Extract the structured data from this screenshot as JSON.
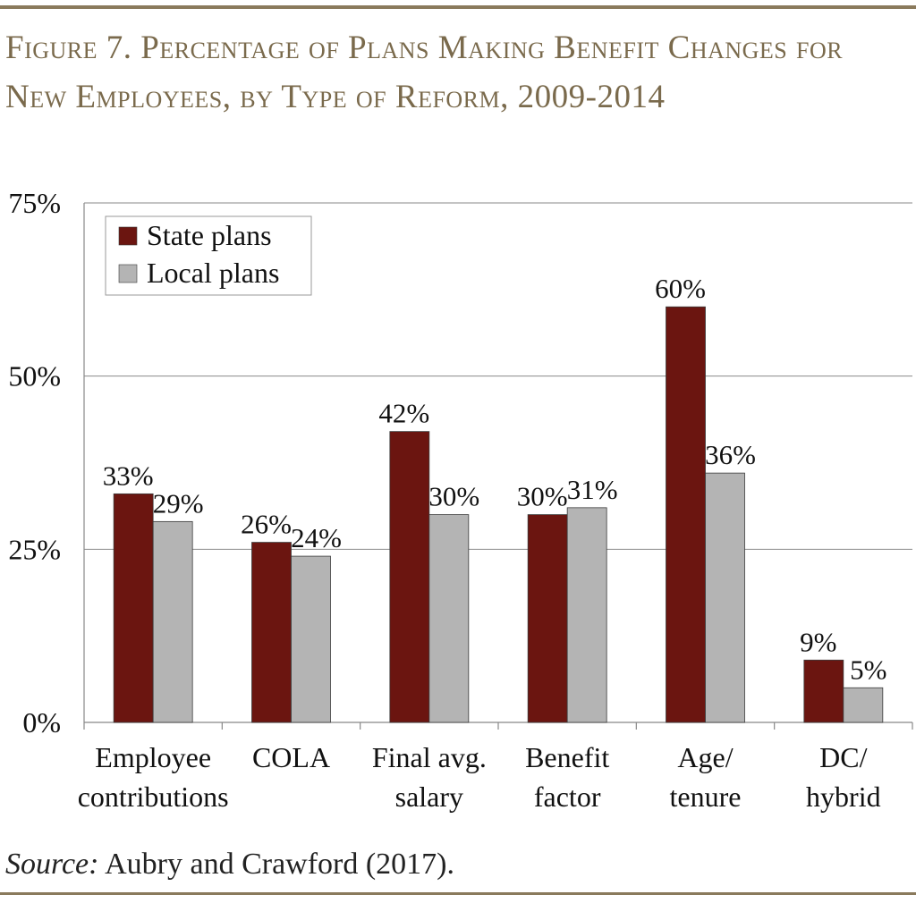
{
  "figure": {
    "title": "Figure 7. Percentage of Plans Making Benefit Changes for New Employees, by Type of Reform, 2009-2014",
    "source_label": "Source:",
    "source_text": " Aubry and Crawford (2017)."
  },
  "colors": {
    "state": "#6b1510",
    "local": "#b4b4b4",
    "rule": "#8a7a5c",
    "title": "#7a6a4c",
    "grid": "#888888"
  },
  "chart_data": {
    "type": "bar",
    "title": "Figure 7. Percentage of Plans Making Benefit Changes for New Employees, by Type of Reform, 2009-2014",
    "xlabel": "",
    "ylabel": "",
    "ylim": [
      0,
      75
    ],
    "yticks": [
      0,
      25,
      50,
      75
    ],
    "ytick_labels": [
      "0%",
      "25%",
      "50%",
      "75%"
    ],
    "grid": true,
    "legend_position": "top-left",
    "categories": [
      [
        "Employee",
        "contributions"
      ],
      [
        "COLA"
      ],
      [
        "Final avg.",
        "salary"
      ],
      [
        "Benefit",
        "factor"
      ],
      [
        "Age/",
        "tenure"
      ],
      [
        "DC/",
        "hybrid"
      ]
    ],
    "series": [
      {
        "name": "State plans",
        "color": "#6b1510",
        "values": [
          33,
          26,
          42,
          30,
          60,
          9
        ],
        "labels": [
          "33%",
          "26%",
          "42%",
          "30%",
          "60%",
          "9%"
        ]
      },
      {
        "name": "Local plans",
        "color": "#b4b4b4",
        "values": [
          29,
          24,
          30,
          31,
          36,
          5
        ],
        "labels": [
          "29%",
          "24%",
          "30%",
          "31%",
          "36%",
          "5%"
        ]
      }
    ]
  }
}
